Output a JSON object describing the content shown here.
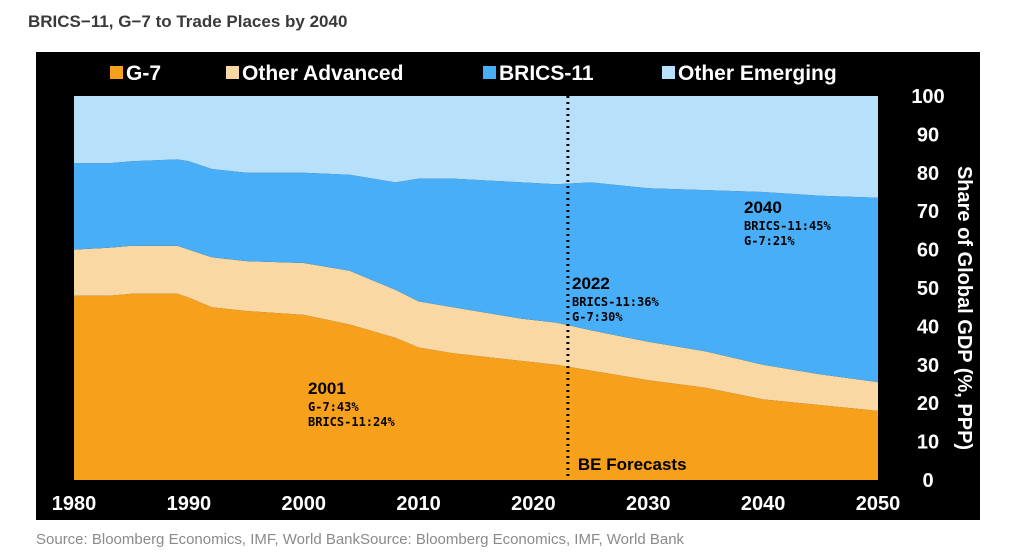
{
  "header": {
    "title": "BRICS−11, G−7 to Trade Places by 2040"
  },
  "footer": {
    "source": "Source: Bloomberg Economics, IMF, World BankSource: Bloomberg Economics, IMF, World Bank"
  },
  "colors": {
    "g7": "#F7A01C",
    "other_advanced": "#FAD8A3",
    "brics": "#47AEF7",
    "other_emerging": "#B7E0FB",
    "background": "#000000"
  },
  "chart_data": {
    "type": "area",
    "stacked": true,
    "title": "",
    "xlabel": "",
    "ylabel": "Share of Global GDP (%, PPP)",
    "xlim": [
      1980,
      2050
    ],
    "ylim": [
      0,
      100
    ],
    "x_ticks": [
      "1980",
      "1990",
      "2000",
      "2010",
      "2020",
      "2030",
      "2040",
      "2050"
    ],
    "y_ticks": [
      "0",
      "10",
      "20",
      "30",
      "40",
      "50",
      "60",
      "70",
      "80",
      "90",
      "100"
    ],
    "y_axis_side": "right",
    "legend_position": "top",
    "x": [
      1980,
      1983,
      1985,
      1989,
      1990,
      1992,
      1995,
      2000,
      2004,
      2008,
      2010,
      2013,
      2016,
      2019,
      2022,
      2025,
      2030,
      2035,
      2040,
      2045,
      2050
    ],
    "series": [
      {
        "name": "G-7",
        "color": "#F7A01C",
        "values": [
          48,
          48,
          48.5,
          48.5,
          47.5,
          45,
          44,
          43,
          40.5,
          37,
          34.5,
          33,
          32,
          31,
          30,
          28.5,
          26,
          24,
          21,
          19.5,
          18
        ]
      },
      {
        "name": "Other Advanced",
        "color": "#FAD8A3",
        "values": [
          12,
          12.5,
          12.5,
          12.5,
          12.5,
          13,
          13,
          13.5,
          14,
          12.5,
          12,
          12,
          11.5,
          11,
          11,
          10.5,
          10,
          9.5,
          9,
          8,
          7.5
        ]
      },
      {
        "name": "BRICS-11",
        "color": "#47AEF7",
        "values": [
          22.5,
          22,
          22,
          22.5,
          23,
          23,
          23,
          23.5,
          25,
          28,
          32,
          33.5,
          34.5,
          35.5,
          36,
          38.5,
          40,
          42,
          45,
          46.5,
          48
        ]
      },
      {
        "name": "Other Emerging",
        "color": "#B7E0FB",
        "values": [
          17.5,
          17.5,
          17,
          16.5,
          17,
          19,
          20,
          20,
          20.5,
          22.5,
          21.5,
          21.5,
          22,
          22.5,
          23,
          22.5,
          24,
          24.5,
          25,
          26,
          26.5
        ]
      }
    ],
    "forecast_divider": {
      "x": 2023,
      "label": "BE Forecasts"
    },
    "annotations": [
      {
        "year": "2001",
        "lines": [
          "G-7:43%",
          "BRICS-11:24%"
        ]
      },
      {
        "year": "2022",
        "lines": [
          "BRICS-11:36%",
          "G-7:30%"
        ]
      },
      {
        "year": "2040",
        "lines": [
          "BRICS-11:45%",
          "G-7:21%"
        ]
      }
    ]
  }
}
